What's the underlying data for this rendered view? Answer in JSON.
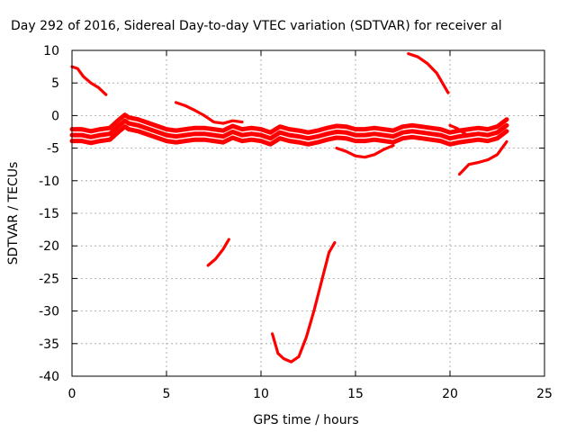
{
  "chart_data": {
    "type": "line",
    "title": "Day 292 of 2016, Sidereal Day-to-day VTEC variation (SDTVAR) for receiver al",
    "xlabel": "GPS time / hours",
    "ylabel": "SDTVAR / TECUs",
    "xlim": [
      0,
      25
    ],
    "ylim": [
      -40,
      10
    ],
    "xticks": [
      0,
      5,
      10,
      15,
      20,
      25
    ],
    "yticks": [
      10,
      5,
      0,
      -5,
      -10,
      -15,
      -20,
      -25,
      -30,
      -35,
      -40
    ],
    "grid": true,
    "legend": "none",
    "color": "#ff0000",
    "series": [
      {
        "band": true,
        "x": [
          0,
          0.5,
          1,
          1.5,
          2,
          2.5,
          2.8,
          3,
          3.5,
          4,
          4.5,
          5,
          5.5,
          6,
          6.5,
          7,
          7.5,
          8,
          8.5,
          9,
          9.5,
          10,
          10.5,
          11,
          11.5,
          12,
          12.5,
          13,
          13.5,
          14,
          14.5,
          15,
          15.5,
          16,
          16.5,
          17,
          17.5,
          18,
          18.5,
          19,
          19.5,
          20,
          20.5,
          21,
          21.5,
          22,
          22.5,
          23
        ],
        "y": [
          -3,
          -3,
          -3.3,
          -3,
          -2.8,
          -1.5,
          -0.8,
          -1.2,
          -1.5,
          -2,
          -2.5,
          -3,
          -3.2,
          -3,
          -2.8,
          -2.8,
          -3,
          -3.2,
          -2.5,
          -3,
          -2.8,
          -3,
          -3.5,
          -2.6,
          -3,
          -3.2,
          -3.5,
          -3.2,
          -2.8,
          -2.5,
          -2.6,
          -3,
          -3,
          -2.8,
          -3,
          -3.2,
          -2.6,
          -2.4,
          -2.6,
          -2.8,
          -3,
          -3.5,
          -3.2,
          -3,
          -2.8,
          -3,
          -2.6,
          -1.5
        ]
      },
      {
        "x": [
          0,
          0.3,
          0.6,
          1,
          1.4,
          1.8
        ],
        "y": [
          7.5,
          7.2,
          6,
          5,
          4.3,
          3.2
        ]
      },
      {
        "x": [
          5.5,
          6,
          6.5,
          7,
          7.5,
          8,
          8.5,
          9
        ],
        "y": [
          2,
          1.5,
          0.8,
          0,
          -1,
          -1.2,
          -0.8,
          -1
        ]
      },
      {
        "x": [
          7.2,
          7.6,
          8,
          8.3
        ],
        "y": [
          -23,
          -22,
          -20.5,
          -19
        ]
      },
      {
        "x": [
          10.6,
          10.9,
          11.2,
          11.6,
          12,
          12.4,
          12.8,
          13.2,
          13.6,
          13.9
        ],
        "y": [
          -33.5,
          -36.5,
          -37.3,
          -37.8,
          -37,
          -34,
          -30,
          -25.5,
          -21,
          -19.5
        ]
      },
      {
        "x": [
          14,
          14.5,
          15,
          15.5,
          16,
          16.5,
          17
        ],
        "y": [
          -5,
          -5.5,
          -6.2,
          -6.4,
          -6,
          -5.2,
          -4.6
        ]
      },
      {
        "x": [
          17.8,
          18.3,
          18.8,
          19.3,
          19.6,
          19.9
        ],
        "y": [
          9.5,
          9,
          8,
          6.5,
          5,
          3.5
        ]
      },
      {
        "x": [
          20.5,
          21,
          21.5,
          22,
          22.5,
          23
        ],
        "y": [
          -9,
          -7.5,
          -7.2,
          -6.8,
          -6,
          -4
        ]
      },
      {
        "x": [
          20,
          20.4,
          20.8
        ],
        "y": [
          -1.5,
          -2,
          -2.8
        ]
      }
    ]
  }
}
